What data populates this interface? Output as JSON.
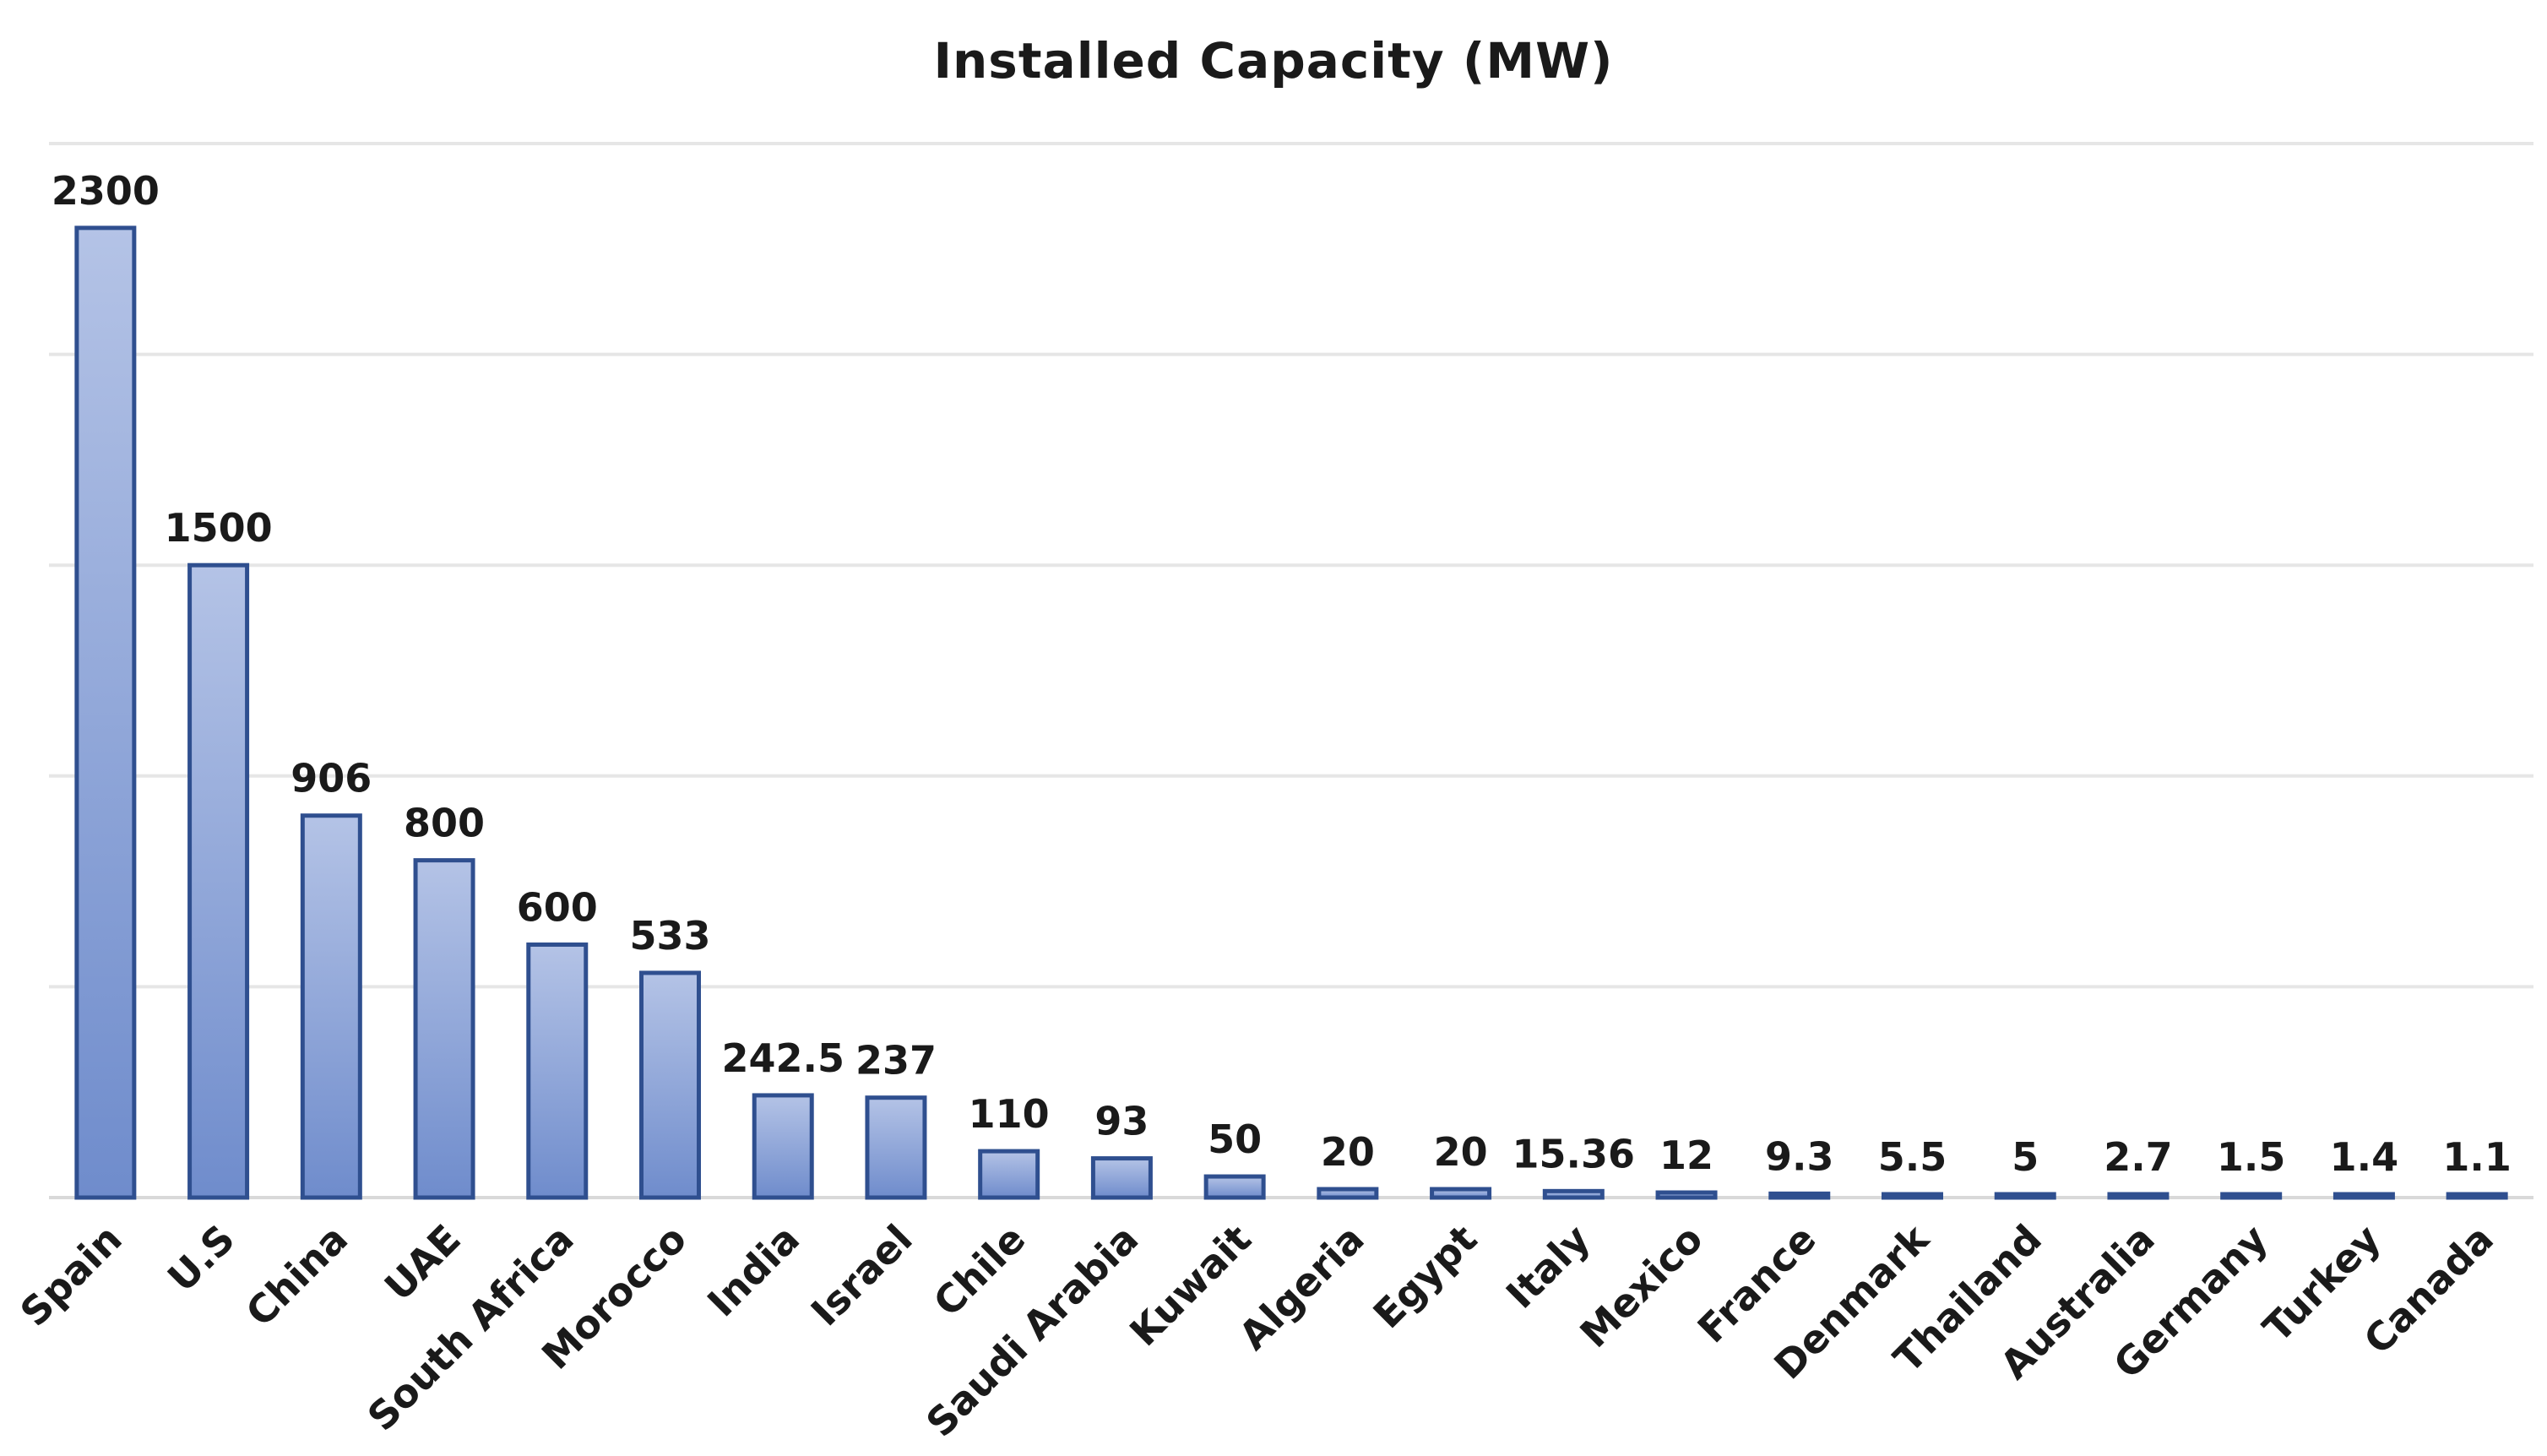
{
  "chart_data": {
    "type": "bar",
    "title": "Installed Capacity (MW)",
    "xlabel": "",
    "ylabel": "",
    "ylim": [
      0,
      2500
    ],
    "grid": true,
    "categories": [
      "Spain",
      "U.S",
      "China",
      "UAE",
      "South Africa",
      "Morocco",
      "India",
      "Israel",
      "Chile",
      "Saudi Arabia",
      "Kuwait",
      "Algeria",
      "Egypt",
      "Italy",
      "Mexico",
      "France",
      "Denmark",
      "Thailand",
      "Australia",
      "Germany",
      "Turkey",
      "Canada"
    ],
    "values": [
      2300,
      1500,
      906,
      800,
      600,
      533,
      242.5,
      237,
      110,
      93,
      50,
      20,
      20,
      15.36,
      12,
      9.3,
      5.5,
      5,
      2.7,
      1.5,
      1.4,
      1.1
    ],
    "value_labels": [
      "2300",
      "1500",
      "906",
      "800",
      "600",
      "533",
      "242.5",
      "237",
      "110",
      "93",
      "50",
      "20",
      "20",
      "15.36",
      "12",
      "9.3",
      "5.5",
      "5",
      "2.7",
      "1.5",
      "1.4",
      "1.1"
    ],
    "colors": {
      "bar_top": "#b4c3e6",
      "bar_bottom": "#6f8ccc",
      "bar_edge": "#2f4f8f"
    }
  }
}
